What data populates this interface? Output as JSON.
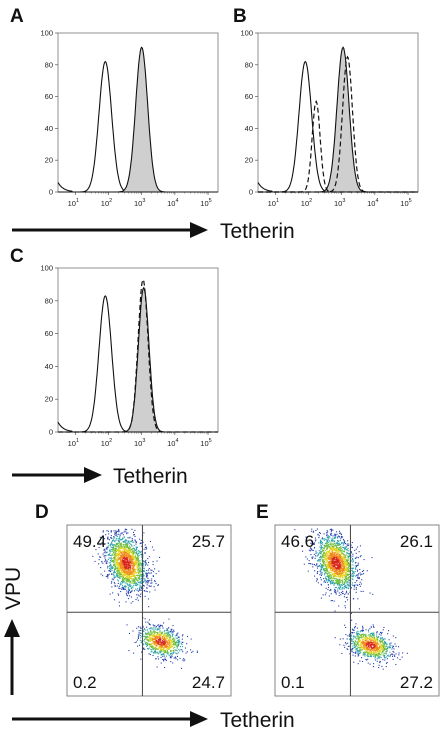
{
  "panels": {
    "A": "A",
    "B": "B",
    "C": "C",
    "D": "D",
    "E": "E"
  },
  "axis_labels": {
    "tetherin_top": "Tetherin",
    "tetherin_mid": "Tetherin",
    "tetherin_bottom": "Tetherin",
    "vpu": "VPU"
  },
  "chart_data": [
    {
      "panel": "A",
      "type": "line",
      "xscale": "log",
      "xlim": [
        3,
        200000
      ],
      "ylim": [
        0,
        100
      ],
      "yticks": [
        0,
        20,
        40,
        60,
        80,
        100
      ],
      "xticks": [
        "10^1",
        "10^2",
        "10^3",
        "10^4",
        "10^5"
      ],
      "grid": false,
      "series": [
        {
          "style": "solid-open",
          "peak_x": 80,
          "peak_y": 82,
          "sd_log": 0.19
        },
        {
          "style": "filled-gray",
          "peak_x": 1000,
          "peak_y": 91,
          "sd_log": 0.18
        }
      ]
    },
    {
      "panel": "B",
      "type": "line",
      "xscale": "log",
      "xlim": [
        3,
        200000
      ],
      "ylim": [
        0,
        100
      ],
      "yticks": [
        0,
        20,
        40,
        60,
        80,
        100
      ],
      "xticks": [
        "10^1",
        "10^2",
        "10^3",
        "10^4",
        "10^5"
      ],
      "grid": false,
      "series": [
        {
          "style": "solid-open",
          "peak_x": 80,
          "peak_y": 82,
          "sd_log": 0.19
        },
        {
          "style": "filled-gray",
          "peak_x": 1100,
          "peak_y": 91,
          "sd_log": 0.18
        },
        {
          "style": "dashed",
          "peak_x": 170,
          "peak_y": 57,
          "sd_log": 0.12
        },
        {
          "style": "dashed",
          "peak_x": 1500,
          "peak_y": 85,
          "sd_log": 0.15
        }
      ]
    },
    {
      "panel": "C",
      "type": "line",
      "xscale": "log",
      "xlim": [
        3,
        200000
      ],
      "ylim": [
        0,
        100
      ],
      "yticks": [
        0,
        20,
        40,
        60,
        80,
        100
      ],
      "xticks": [
        "10^1",
        "10^2",
        "10^3",
        "10^4",
        "10^5"
      ],
      "grid": false,
      "series": [
        {
          "style": "solid-open",
          "peak_x": 80,
          "peak_y": 83,
          "sd_log": 0.19
        },
        {
          "style": "filled-gray",
          "peak_x": 1150,
          "peak_y": 88,
          "sd_log": 0.16
        },
        {
          "style": "dashed",
          "peak_x": 1100,
          "peak_y": 93,
          "sd_log": 0.15
        }
      ]
    },
    {
      "panel": "D",
      "type": "scatter",
      "quadrants": {
        "top_left": "49.4",
        "top_right": "25.7",
        "bottom_left": "0.2",
        "bottom_right": "24.7"
      },
      "populations": [
        {
          "cx": 0.36,
          "cy": 0.22,
          "sx": 0.06,
          "sy": 0.085,
          "weight": 0.68
        },
        {
          "cx": 0.57,
          "cy": 0.68,
          "sx": 0.065,
          "sy": 0.045,
          "weight": 0.32
        }
      ]
    },
    {
      "panel": "E",
      "type": "scatter",
      "quadrants": {
        "top_left": "46.6",
        "top_right": "26.1",
        "bottom_left": "0.1",
        "bottom_right": "27.2"
      },
      "populations": [
        {
          "cx": 0.37,
          "cy": 0.22,
          "sx": 0.06,
          "sy": 0.085,
          "weight": 0.66
        },
        {
          "cx": 0.58,
          "cy": 0.7,
          "sx": 0.065,
          "sy": 0.045,
          "weight": 0.34
        }
      ]
    }
  ]
}
